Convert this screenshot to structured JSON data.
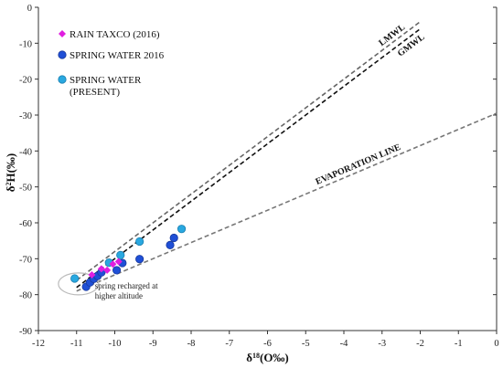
{
  "chart_data": {
    "type": "scatter",
    "xlabel": "δ18(O‰)",
    "ylabel": "δ2H(‰)",
    "xlim": [
      -12,
      0
    ],
    "ylim": [
      -90,
      0
    ],
    "xticks": [
      "-12",
      "-11",
      "-10",
      "-9",
      "-8",
      "-7",
      "-6",
      "-5",
      "-4",
      "-3",
      "-2",
      "-1",
      "0"
    ],
    "yticks": [
      "0",
      "-10",
      "-20",
      "-30",
      "-40",
      "-50",
      "-60",
      "-70",
      "-80",
      "-90"
    ],
    "legend_position": "top-left",
    "series": [
      {
        "name": "RAIN TAXCO (2016)",
        "marker": "diamond",
        "color": "#e01ee0",
        "points": [
          [
            -10.6,
            -74.5
          ],
          [
            -10.35,
            -72.8
          ],
          [
            -10.2,
            -73.2
          ],
          [
            -10.05,
            -71.5
          ],
          [
            -9.9,
            -70.8
          ]
        ]
      },
      {
        "name": "SPRING WATER 2016",
        "marker": "circle",
        "color": "#1f4fd6",
        "points": [
          [
            -10.75,
            -77.8
          ],
          [
            -10.65,
            -76.6
          ],
          [
            -10.55,
            -75.6
          ],
          [
            -10.45,
            -74.8
          ],
          [
            -10.35,
            -73.8
          ],
          [
            -9.95,
            -73.2
          ],
          [
            -9.8,
            -71.2
          ],
          [
            -9.35,
            -70.1
          ],
          [
            -8.55,
            -66.2
          ],
          [
            -8.45,
            -64.2
          ]
        ]
      },
      {
        "name": "SPRING WATER\n(PRESENT)",
        "name_lines": [
          "SPRING WATER",
          "(PRESENT)"
        ],
        "marker": "circle",
        "color": "#29a8e0",
        "points": [
          [
            -11.05,
            -75.5
          ],
          [
            -10.15,
            -71.1
          ],
          [
            -9.85,
            -69.0
          ],
          [
            -9.35,
            -65.2
          ],
          [
            -8.25,
            -61.7
          ]
        ]
      }
    ],
    "lines": [
      {
        "name": "LMWL",
        "from": [
          -11,
          -76
        ],
        "to": [
          -2,
          -4
        ],
        "color": "#666666"
      },
      {
        "name": "GMWL",
        "from": [
          -11,
          -78
        ],
        "to": [
          -2,
          -6
        ],
        "color": "#111111"
      },
      {
        "name": "EVAPORATION LINE",
        "from": [
          -11,
          -79
        ],
        "to": [
          0,
          -29.5
        ],
        "color": "#777777"
      }
    ],
    "annotations": [
      {
        "text_lines": [
          "spring recharged at",
          "higher altitude"
        ],
        "x": -10.95,
        "y": -76.7
      }
    ]
  }
}
